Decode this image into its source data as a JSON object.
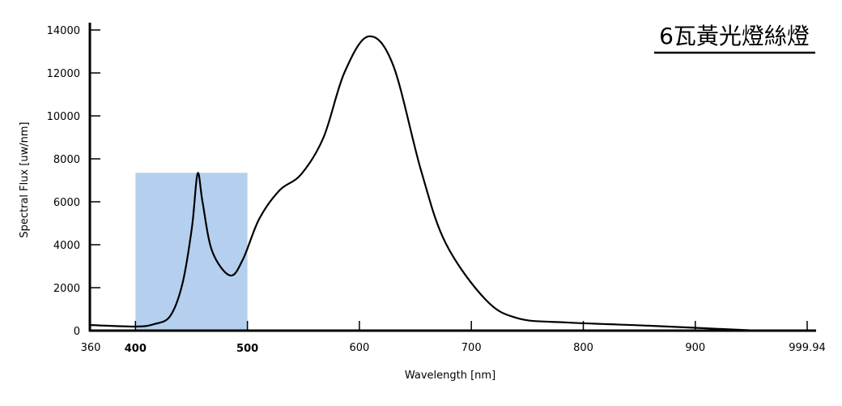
{
  "chart_data": {
    "type": "line",
    "title": "6瓦黃光燈絲燈",
    "xlabel": "Wavelength [nm]",
    "ylabel": "Spectral Flux [uw/nm]",
    "xlim": [
      360,
      999.94
    ],
    "ylim": [
      0,
      14000
    ],
    "grid": false,
    "x_ticks": [
      {
        "value": 360,
        "label": "360",
        "highlight": false
      },
      {
        "value": 400,
        "label": "400",
        "highlight": true
      },
      {
        "value": 500,
        "label": "500",
        "highlight": true
      },
      {
        "value": 600,
        "label": "600",
        "highlight": false
      },
      {
        "value": 700,
        "label": "700",
        "highlight": false
      },
      {
        "value": 800,
        "label": "800",
        "highlight": false
      },
      {
        "value": 900,
        "label": "900",
        "highlight": false
      },
      {
        "value": 999.94,
        "label": "999.94",
        "highlight": false
      }
    ],
    "y_ticks": [
      {
        "value": 0,
        "label": "0"
      },
      {
        "value": 2000,
        "label": "2000"
      },
      {
        "value": 4000,
        "label": "4000"
      },
      {
        "value": 6000,
        "label": "6000"
      },
      {
        "value": 8000,
        "label": "8000"
      },
      {
        "value": 10000,
        "label": "10000"
      },
      {
        "value": 12000,
        "label": "12000"
      },
      {
        "value": 14000,
        "label": "14000"
      }
    ],
    "highlight_band": {
      "x_from": 400,
      "x_to": 500,
      "y_top": 7350,
      "color": "#b4d0ee"
    },
    "highlight_label_color": "#1f3fbf",
    "series": [
      {
        "name": "Spectral Flux",
        "color": "#000000",
        "x": [
          360,
          400,
          416.5,
          431,
          442,
          450.5,
          455.5,
          460,
          468.5,
          484.5,
          496,
          510.5,
          528.6,
          548,
          568,
          586.5,
          608,
          630,
          655,
          677,
          713,
          742,
          785.5,
          858,
          955.5
        ],
        "y": [
          260,
          190,
          300,
          680,
          2200,
          4830,
          7320,
          5960,
          3700,
          2570,
          3320,
          5200,
          6530,
          7280,
          9000,
          12000,
          13700,
          12380,
          7470,
          4080,
          1430,
          570,
          380,
          230,
          0
        ]
      }
    ]
  }
}
